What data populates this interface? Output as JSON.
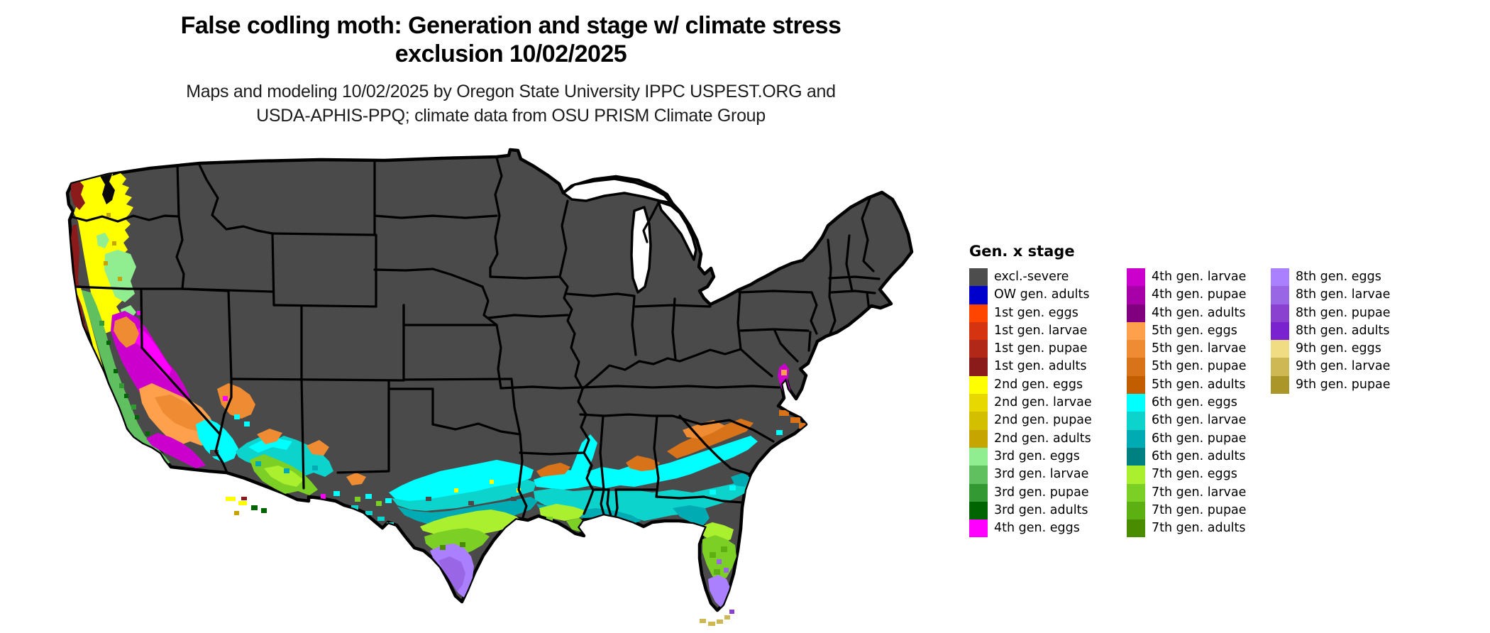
{
  "header": {
    "title_line1": "False codling moth: Generation and stage w/ climate stress",
    "title_line2": "exclusion 10/02/2025",
    "subtitle_line1": "Maps and modeling 10/02/2025 by Oregon State University IPPC USPEST.ORG and",
    "subtitle_line2": "USDA-APHIS-PPQ; climate data from OSU PRISM Climate Group"
  },
  "legend": {
    "title": "Gen. x stage",
    "columns": [
      {
        "items": [
          {
            "label": "excl.-severe",
            "color": "#4d4d4d"
          },
          {
            "label": "OW gen. adults",
            "color": "#0000cc"
          },
          {
            "label": "1st gen. eggs",
            "color": "#ff4500"
          },
          {
            "label": "1st gen. larvae",
            "color": "#d63310"
          },
          {
            "label": "1st gen. pupae",
            "color": "#b22818"
          },
          {
            "label": "1st gen. adults",
            "color": "#8b1a1a"
          },
          {
            "label": "2nd gen. eggs",
            "color": "#ffff00"
          },
          {
            "label": "2nd gen. larvae",
            "color": "#e6d800"
          },
          {
            "label": "2nd gen. pupae",
            "color": "#d4be00"
          },
          {
            "label": "2nd gen. adults",
            "color": "#c7a500"
          },
          {
            "label": "3rd gen. eggs",
            "color": "#90ee90"
          },
          {
            "label": "3rd gen. larvae",
            "color": "#60c060"
          },
          {
            "label": "3rd gen. pupae",
            "color": "#339933"
          },
          {
            "label": "3rd gen. adults",
            "color": "#006400"
          },
          {
            "label": "4th gen. eggs",
            "color": "#ff00ff"
          }
        ]
      },
      {
        "items": [
          {
            "label": "4th gen. larvae",
            "color": "#cc00cc"
          },
          {
            "label": "4th gen. pupae",
            "color": "#a800a8"
          },
          {
            "label": "4th gen. adults",
            "color": "#800080"
          },
          {
            "label": "5th gen. eggs",
            "color": "#ffa04d"
          },
          {
            "label": "5th gen. larvae",
            "color": "#ef8c33"
          },
          {
            "label": "5th gen. pupae",
            "color": "#d9731a"
          },
          {
            "label": "5th gen. adults",
            "color": "#c25e00"
          },
          {
            "label": "6th gen. eggs",
            "color": "#00ffff"
          },
          {
            "label": "6th gen. larvae",
            "color": "#0cd3cc"
          },
          {
            "label": "6th gen. pupae",
            "color": "#00abb4"
          },
          {
            "label": "6th gen. adults",
            "color": "#008080"
          },
          {
            "label": "7th gen. eggs",
            "color": "#aaf02e"
          },
          {
            "label": "7th gen. larvae",
            "color": "#7ccf24"
          },
          {
            "label": "7th gen. pupae",
            "color": "#5cb012"
          },
          {
            "label": "7th gen. adults",
            "color": "#4a8c00"
          }
        ]
      },
      {
        "items": [
          {
            "label": "8th gen. eggs",
            "color": "#aa80ff"
          },
          {
            "label": "8th gen. larvae",
            "color": "#9966e6"
          },
          {
            "label": "8th gen. pupae",
            "color": "#8a41d0"
          },
          {
            "label": "8th gen. adults",
            "color": "#7a22cf"
          },
          {
            "label": "9th gen. eggs",
            "color": "#f0dc82"
          },
          {
            "label": "9th gen. larvae",
            "color": "#cdb853"
          },
          {
            "label": "9th gen. pupae",
            "color": "#ab9729"
          }
        ]
      }
    ]
  },
  "map": {
    "background": "#ffffff",
    "border_color": "#000000",
    "water_color": "#ffffff",
    "palette": {
      "land": "#4a4a4a",
      "gray": "#4a4a4a",
      "water": "#ffffff",
      "puget": "#0a0a0a",
      "blue": "#0000cc",
      "eggs1": "#ff4500",
      "dark_red": "#8b1a1a",
      "yellow": "#ffff00",
      "gold": "#c7a500",
      "lt_green": "#90ee90",
      "md_green": "#60c060",
      "grn": "#339933",
      "dk_green": "#006400",
      "magenta": "#ff00ff",
      "magenta2": "#cc00cc",
      "purple4": "#800080",
      "orange_lt": "#ffa04d",
      "orange": "#ef8c33",
      "orange_dk": "#d9731a",
      "cyan": "#00ffff",
      "teal": "#0cd3cc",
      "teal_dk": "#00abb4",
      "teal_dkr": "#008080",
      "yg": "#aaf02e",
      "green7": "#7ccf24",
      "green7b": "#5cb012",
      "green7c": "#4a8c00",
      "purple8a": "#aa80ff",
      "purple8b": "#9966e6",
      "purple8c": "#8a41d0",
      "tan9": "#cdb853",
      "tan9a": "#f0dc82",
      "olive9": "#ab9729"
    }
  }
}
